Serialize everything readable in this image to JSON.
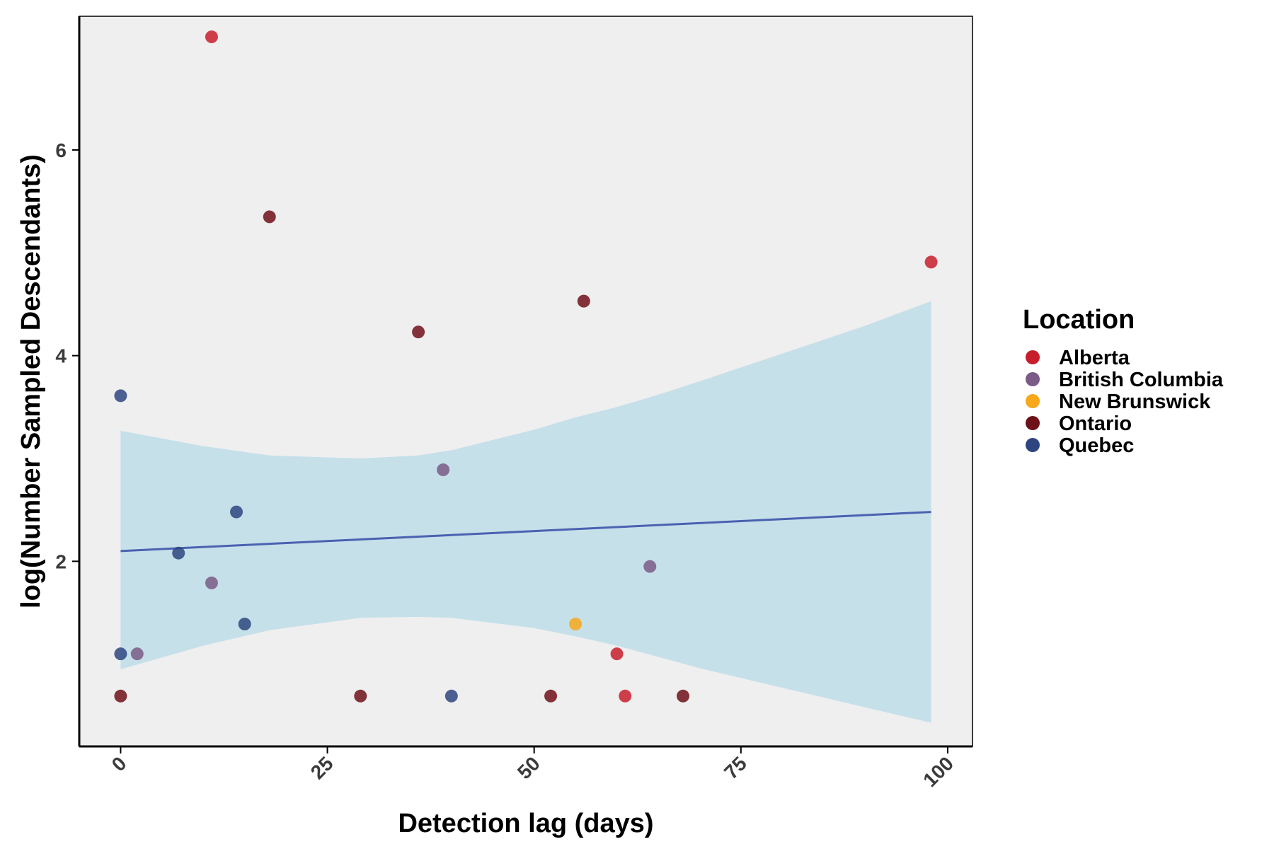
{
  "chart_data": {
    "type": "scatter",
    "xlabel": "Detection lag (days)",
    "ylabel": "log(Number Sampled Descendants)",
    "xlim": [
      -5,
      103
    ],
    "ylim": [
      0.2,
      7.3
    ],
    "x_ticks": [
      0,
      25,
      50,
      75,
      100
    ],
    "x_tick_labels": [
      "0",
      "25",
      "50",
      "75",
      "100"
    ],
    "y_ticks": [
      2,
      4,
      6
    ],
    "y_tick_labels": [
      "2",
      "4",
      "6"
    ],
    "grid": false,
    "panel_background": "#efefef",
    "legend": {
      "title": "Location",
      "placement": "right",
      "entries": [
        {
          "label": "Alberta",
          "color": "#c81e2c"
        },
        {
          "label": "British Columbia",
          "color": "#7a5a86"
        },
        {
          "label": "New Brunswick",
          "color": "#f7a81b"
        },
        {
          "label": "Ontario",
          "color": "#6e1018"
        },
        {
          "label": "Quebec",
          "color": "#2e4680"
        }
      ]
    },
    "series": [
      {
        "name": "Alberta",
        "color": "#c81e2c",
        "x": [
          11,
          60,
          61,
          98
        ],
        "y": [
          7.1,
          1.1,
          0.69,
          4.91
        ]
      },
      {
        "name": "British Columbia",
        "color": "#7a5a86",
        "x": [
          2,
          11,
          39,
          64
        ],
        "y": [
          1.1,
          1.79,
          2.89,
          1.95
        ]
      },
      {
        "name": "New Brunswick",
        "color": "#f7a81b",
        "x": [
          55
        ],
        "y": [
          1.39
        ]
      },
      {
        "name": "Ontario",
        "color": "#6e1018",
        "x": [
          0,
          18,
          29,
          36,
          52,
          56,
          68
        ],
        "y": [
          0.69,
          5.35,
          0.69,
          4.23,
          0.69,
          4.53,
          0.69
        ]
      },
      {
        "name": "Quebec",
        "color": "#2e4680",
        "x": [
          0,
          0,
          7,
          14,
          15,
          40
        ],
        "y": [
          3.61,
          1.1,
          2.08,
          2.48,
          1.39,
          0.69
        ]
      }
    ],
    "trend_line": {
      "color": "#4a62b0",
      "x": [
        0,
        98
      ],
      "y": [
        2.1,
        2.48
      ]
    },
    "confidence_band": {
      "color": "#c6e0ea",
      "x": [
        0,
        10,
        18,
        29,
        36,
        40,
        50,
        55,
        60,
        65,
        70,
        80,
        90,
        98
      ],
      "lower": [
        0.95,
        1.18,
        1.33,
        1.45,
        1.46,
        1.45,
        1.35,
        1.27,
        1.18,
        1.07,
        0.96,
        0.77,
        0.58,
        0.43
      ],
      "upper": [
        3.27,
        3.12,
        3.03,
        3.0,
        3.03,
        3.08,
        3.28,
        3.4,
        3.5,
        3.62,
        3.75,
        4.02,
        4.29,
        4.53
      ]
    }
  }
}
